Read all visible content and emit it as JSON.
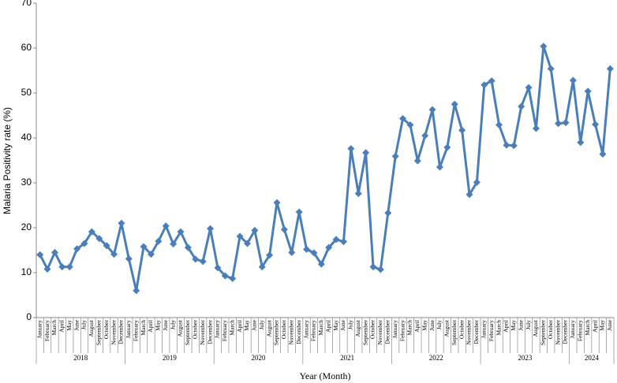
{
  "chart_data": {
    "type": "line",
    "x_label": "Year (Month)",
    "y_label": "Malaria Positivity  rate (%)",
    "categories": [
      "January",
      "February",
      "March",
      "April",
      "May",
      "June",
      "July",
      "August",
      "September",
      "October",
      "November",
      "December",
      "January",
      "February",
      "March",
      "April",
      "May",
      "June",
      "July",
      "August",
      "September",
      "October",
      "November",
      "December",
      "January",
      "February",
      "March",
      "April",
      "May",
      "June",
      "July",
      "August",
      "September",
      "October",
      "November",
      "December",
      "January",
      "February",
      "March",
      "April",
      "May",
      "June",
      "July",
      "August",
      "September",
      "October",
      "November",
      "December",
      "January",
      "February",
      "March",
      "April",
      "May",
      "June",
      "July",
      "August",
      "September",
      "October",
      "November",
      "December",
      "January",
      "February",
      "March",
      "April",
      "May",
      "June",
      "July",
      "August",
      "September",
      "October",
      "November",
      "December",
      "January",
      "February",
      "March",
      "April",
      "May",
      "June"
    ],
    "year_groups": [
      "2018",
      "2019",
      "2020",
      "2021",
      "2022",
      "2023",
      "2024"
    ],
    "color": "#4a7ebb",
    "values": [
      14,
      10.8,
      14.5,
      11.3,
      11.3,
      15.3,
      16.5,
      19.1,
      17.6,
      16,
      14.1,
      21,
      13.1,
      6,
      15.8,
      14.1,
      17,
      20.4,
      16.4,
      19.1,
      15.6,
      13,
      12.5,
      19.8,
      11.1,
      9.3,
      8.7,
      18.1,
      16.5,
      19.4,
      11.3,
      13.9,
      25.6,
      19.6,
      14.5,
      23.5,
      15.2,
      14.4,
      11.9,
      15.6,
      17.4,
      16.9,
      37.6,
      27.6,
      36.7,
      11.3,
      10.7,
      23.3,
      35.9,
      44.3,
      42.9,
      34.9,
      40.5,
      46.3,
      33.5,
      37.9,
      47.5,
      41.7,
      27.4,
      30.1,
      51.8,
      52.7,
      42.9,
      38.4,
      38.3,
      47,
      51.2,
      42.1,
      60.4,
      55.4,
      43.2,
      43.4,
      52.8,
      39,
      50.4,
      43,
      36.4,
      55.4
    ],
    "ylim": [
      0,
      70
    ],
    "yticks": [
      0,
      10,
      20,
      30,
      40,
      50,
      60,
      70
    ]
  }
}
